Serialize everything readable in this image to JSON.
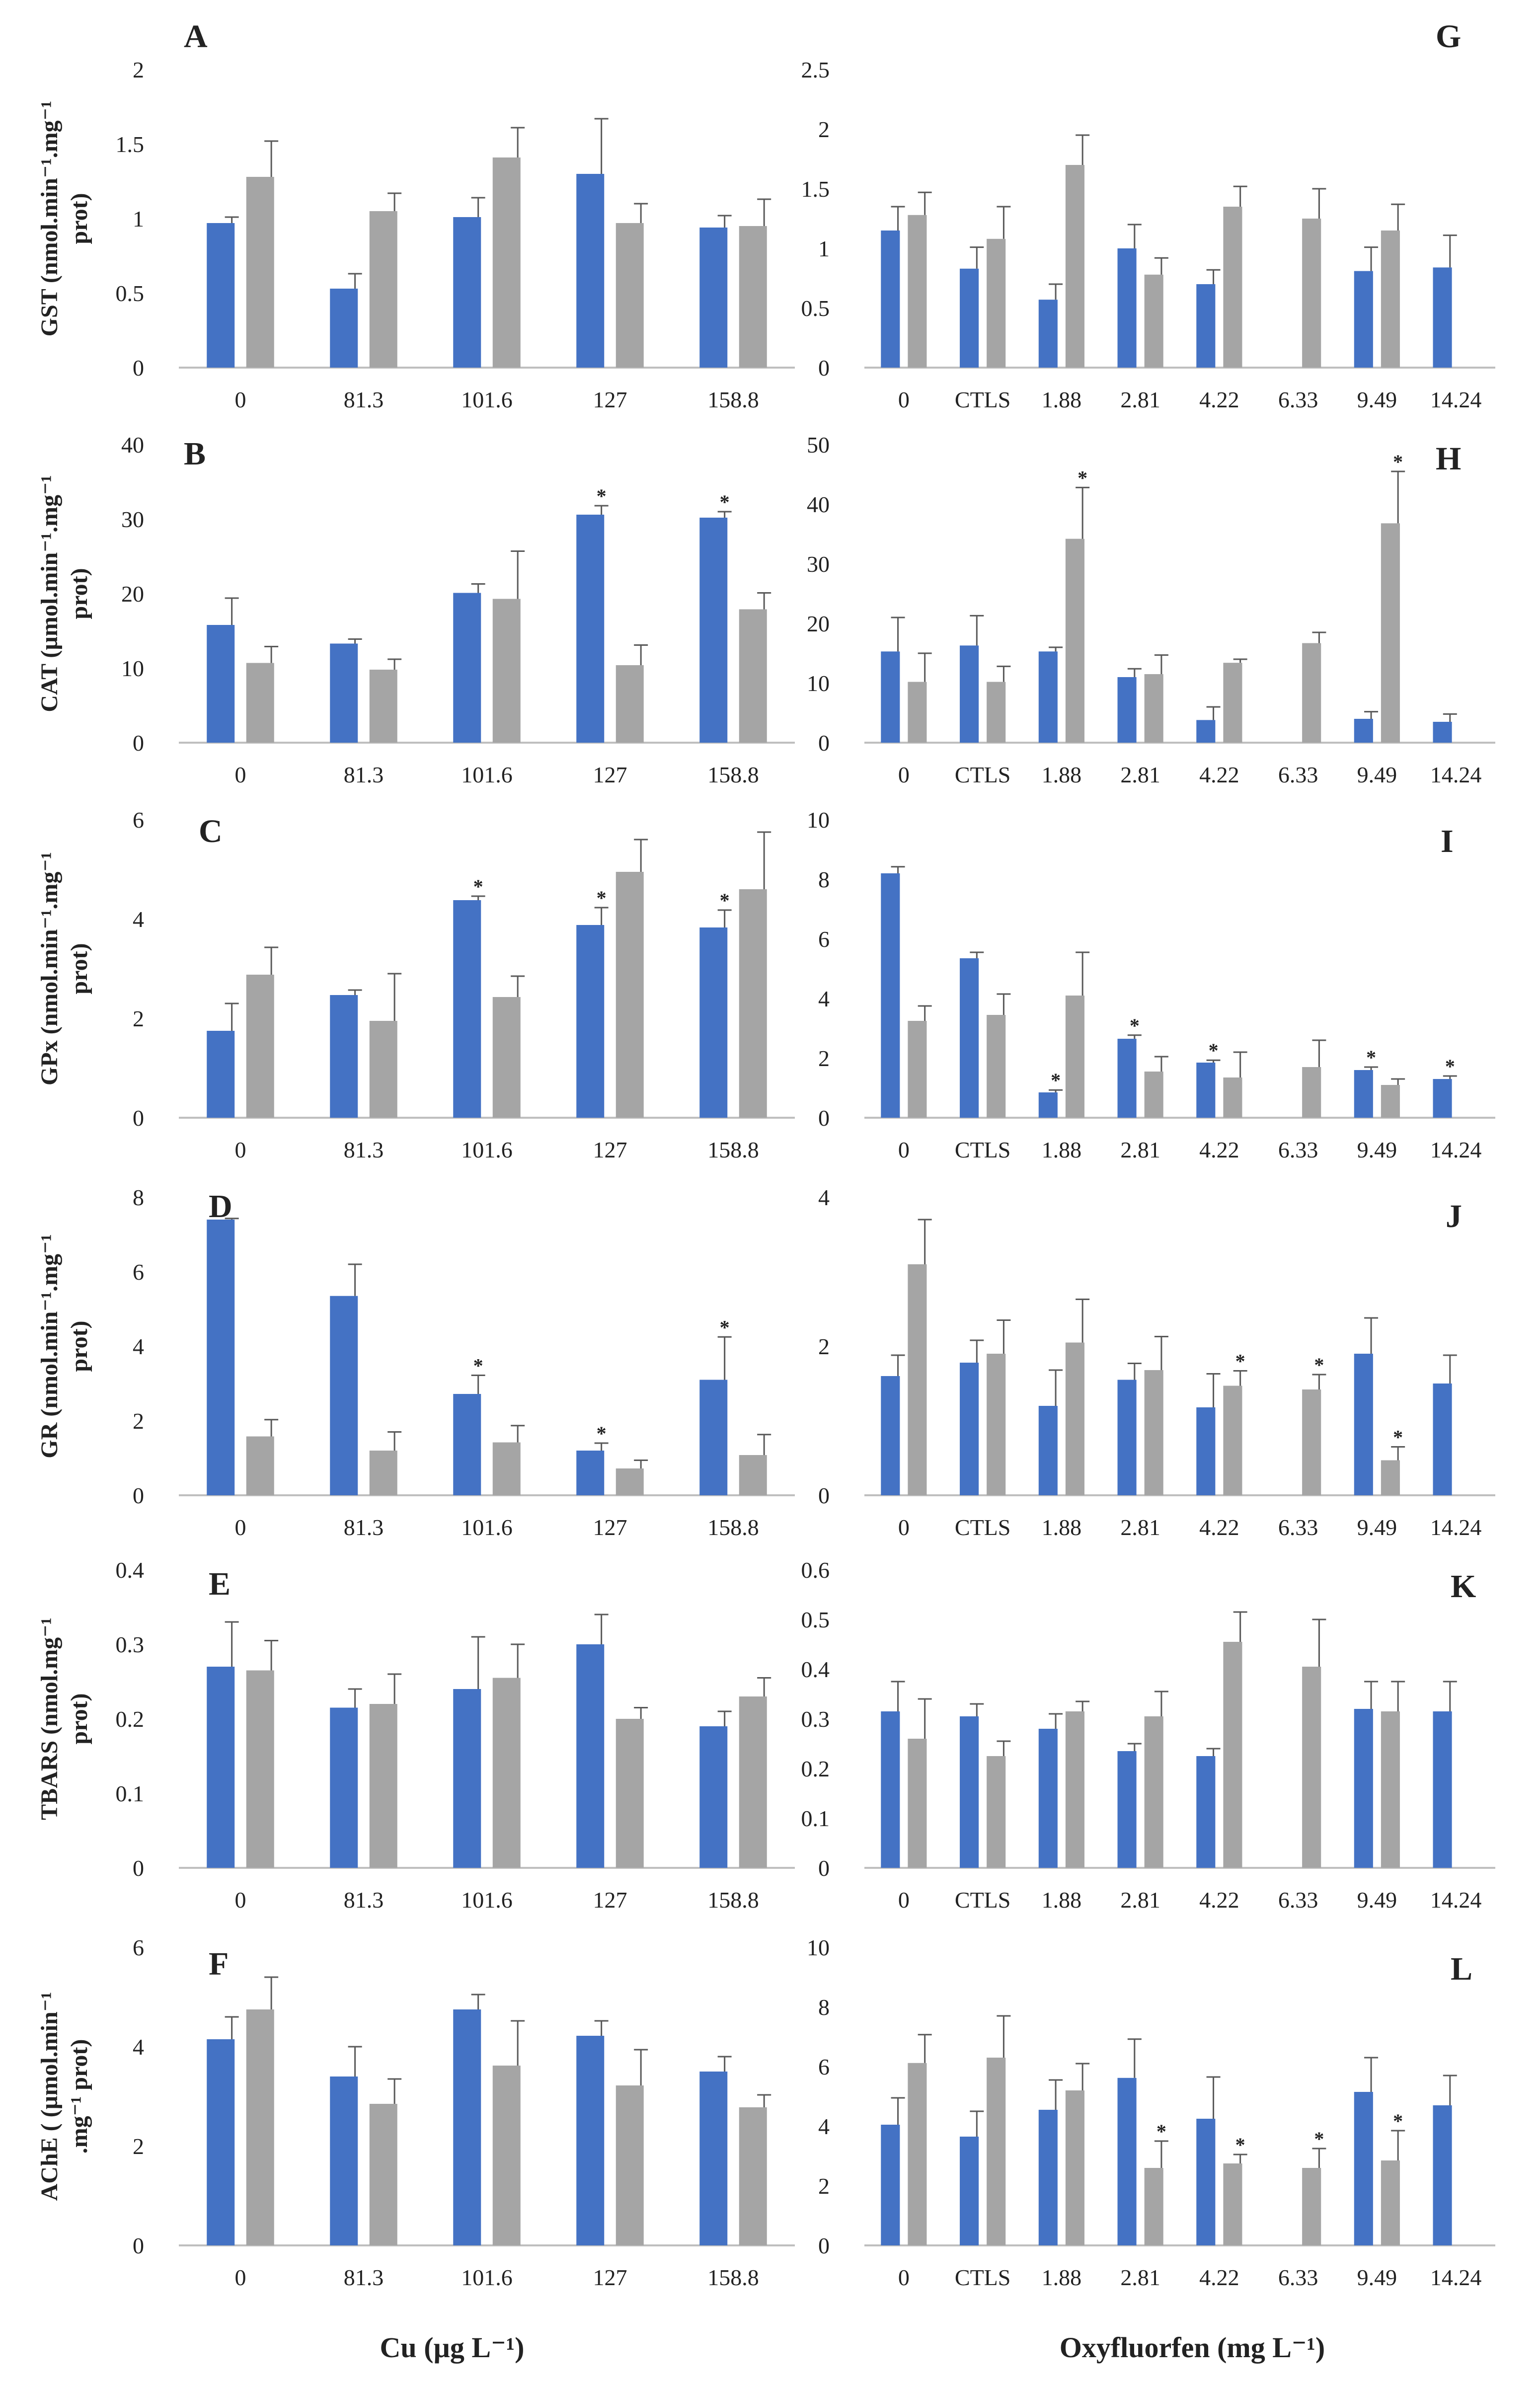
{
  "colors": {
    "blue": "#4472C4",
    "gray": "#A5A5A5",
    "error": "#595959",
    "axis": "#BFBFBF",
    "text": "#222222"
  },
  "x_titles": {
    "left": "Cu (µg L⁻¹)",
    "right": "Oxyfluorfen  (mg L⁻¹)"
  },
  "chart_data": [
    {
      "id": "A",
      "type": "bar",
      "letter": "A",
      "ylabel": [
        "GST (nmol.min⁻¹.mg⁻¹",
        "prot)"
      ],
      "ylim": [
        0,
        2
      ],
      "ticks": [
        "0",
        "0.5",
        "1",
        "1.5",
        "2"
      ],
      "categories": [
        "0",
        "81.3",
        "101.6",
        "127",
        "158.8"
      ],
      "series": [
        {
          "name": "blue",
          "values": [
            0.97,
            0.53,
            1.01,
            1.3,
            0.94
          ],
          "errors": [
            0.04,
            0.1,
            0.13,
            0.37,
            0.08
          ],
          "sig": [
            false,
            false,
            false,
            false,
            false
          ]
        },
        {
          "name": "gray",
          "values": [
            1.28,
            1.05,
            1.41,
            0.97,
            0.95
          ],
          "errors": [
            0.24,
            0.12,
            0.2,
            0.13,
            0.18
          ],
          "sig": [
            false,
            false,
            false,
            false,
            false
          ]
        }
      ]
    },
    {
      "id": "B",
      "type": "bar",
      "letter": "B",
      "ylabel": [
        "CAT (µmol.min⁻¹.mg⁻¹",
        "prot)"
      ],
      "ylim": [
        0,
        40
      ],
      "ticks": [
        "0",
        "10",
        "20",
        "30",
        "40"
      ],
      "categories": [
        "0",
        "81.3",
        "101.6",
        "127",
        "158.8"
      ],
      "series": [
        {
          "name": "blue",
          "values": [
            15.8,
            13.3,
            20.1,
            30.6,
            30.2
          ],
          "errors": [
            3.6,
            0.6,
            1.2,
            1.2,
            0.8
          ],
          "sig": [
            false,
            false,
            false,
            true,
            true
          ]
        },
        {
          "name": "gray",
          "values": [
            10.7,
            9.8,
            19.3,
            10.4,
            17.9
          ],
          "errors": [
            2.2,
            1.4,
            6.4,
            2.7,
            2.2
          ],
          "sig": [
            false,
            false,
            false,
            false,
            false
          ]
        }
      ]
    },
    {
      "id": "C",
      "type": "bar",
      "letter": "C",
      "ylabel": [
        "GPx (nmol.min⁻¹.mg⁻¹",
        "prot)"
      ],
      "ylim": [
        0,
        6
      ],
      "ticks": [
        "0",
        "2",
        "4",
        "6"
      ],
      "categories": [
        "0",
        "81.3",
        "101.6",
        "127",
        "158.8"
      ],
      "series": [
        {
          "name": "blue",
          "values": [
            1.75,
            2.47,
            4.38,
            3.88,
            3.83
          ],
          "errors": [
            0.55,
            0.1,
            0.08,
            0.35,
            0.35
          ],
          "sig": [
            false,
            false,
            true,
            true,
            true
          ]
        },
        {
          "name": "gray",
          "values": [
            2.88,
            1.95,
            2.43,
            4.95,
            4.6
          ],
          "errors": [
            0.55,
            0.95,
            0.42,
            0.65,
            1.15
          ],
          "sig": [
            false,
            false,
            false,
            false,
            false
          ]
        }
      ]
    },
    {
      "id": "D",
      "type": "bar",
      "letter": "D",
      "ylabel": [
        "GR (nmol.min⁻¹.mg⁻¹",
        "prot)"
      ],
      "ylim": [
        0,
        8
      ],
      "ticks": [
        "0",
        "2",
        "4",
        "6",
        "8"
      ],
      "categories": [
        "0",
        "81.3",
        "101.6",
        "127",
        "158.8"
      ],
      "series": [
        {
          "name": "blue",
          "values": [
            7.4,
            5.35,
            2.72,
            1.2,
            3.1
          ],
          "errors": [
            0.03,
            0.85,
            0.5,
            0.2,
            1.15
          ],
          "sig": [
            false,
            false,
            true,
            true,
            true
          ]
        },
        {
          "name": "gray",
          "values": [
            1.58,
            1.2,
            1.42,
            0.72,
            1.08
          ],
          "errors": [
            0.45,
            0.5,
            0.45,
            0.22,
            0.55
          ],
          "sig": [
            false,
            false,
            false,
            false,
            false
          ]
        }
      ]
    },
    {
      "id": "E",
      "type": "bar",
      "letter": "E",
      "ylabel": [
        "TBARS (nmol.mg⁻¹",
        "prot)"
      ],
      "ylim": [
        0,
        0.4
      ],
      "ticks": [
        "0",
        "0.1",
        "0.2",
        "0.3",
        "0.4"
      ],
      "categories": [
        "0",
        "81.3",
        "101.6",
        "127",
        "158.8"
      ],
      "series": [
        {
          "name": "blue",
          "values": [
            0.27,
            0.215,
            0.24,
            0.3,
            0.19
          ],
          "errors": [
            0.06,
            0.025,
            0.07,
            0.04,
            0.02
          ],
          "sig": [
            false,
            false,
            false,
            false,
            false
          ]
        },
        {
          "name": "gray",
          "values": [
            0.265,
            0.22,
            0.255,
            0.2,
            0.23
          ],
          "errors": [
            0.04,
            0.04,
            0.045,
            0.015,
            0.025
          ],
          "sig": [
            false,
            false,
            false,
            false,
            false
          ]
        }
      ]
    },
    {
      "id": "F",
      "type": "bar",
      "letter": "F",
      "ylabel": [
        "AChE ( (µmol.min⁻¹",
        ".mg⁻¹ prot)"
      ],
      "ylim": [
        0,
        6
      ],
      "ticks": [
        "0",
        "2",
        "4",
        "6"
      ],
      "categories": [
        "0",
        "81.3",
        "101.6",
        "127",
        "158.8"
      ],
      "series": [
        {
          "name": "blue",
          "values": [
            4.15,
            3.4,
            4.75,
            4.22,
            3.5
          ],
          "errors": [
            0.45,
            0.6,
            0.3,
            0.3,
            0.3
          ],
          "sig": [
            false,
            false,
            false,
            false,
            false
          ]
        },
        {
          "name": "gray",
          "values": [
            4.75,
            2.85,
            3.62,
            3.22,
            2.78
          ],
          "errors": [
            0.65,
            0.5,
            0.9,
            0.72,
            0.25
          ],
          "sig": [
            false,
            false,
            false,
            false,
            false
          ]
        }
      ]
    },
    {
      "id": "G",
      "type": "bar",
      "letter": "G",
      "ylabel": [],
      "ylim": [
        0,
        2.5
      ],
      "ticks": [
        "0",
        "0.5",
        "1",
        "1.5",
        "2",
        "2.5"
      ],
      "categories": [
        "0",
        "CTLS",
        "1.88",
        "2.81",
        "4.22",
        "6.33",
        "9.49",
        "14.24"
      ],
      "series": [
        {
          "name": "blue",
          "values": [
            1.15,
            0.83,
            0.57,
            1.0,
            0.7,
            null,
            0.81,
            0.84
          ],
          "errors": [
            0.2,
            0.18,
            0.13,
            0.2,
            0.12,
            null,
            0.2,
            0.27
          ],
          "sig": [
            false,
            false,
            false,
            false,
            false,
            false,
            false,
            false
          ]
        },
        {
          "name": "gray",
          "values": [
            1.28,
            1.08,
            1.7,
            0.78,
            1.35,
            1.25,
            1.15,
            null
          ],
          "errors": [
            0.19,
            0.27,
            0.25,
            0.14,
            0.17,
            0.25,
            0.22,
            null
          ],
          "sig": [
            false,
            false,
            false,
            false,
            false,
            false,
            false,
            false
          ]
        }
      ]
    },
    {
      "id": "H",
      "type": "bar",
      "letter": "H",
      "ylabel": [],
      "ylim": [
        0,
        50
      ],
      "ticks": [
        "0",
        "10",
        "20",
        "30",
        "40",
        "50"
      ],
      "categories": [
        "0",
        "CTLS",
        "1.88",
        "2.81",
        "4.22",
        "6.33",
        "9.49",
        "14.24"
      ],
      "series": [
        {
          "name": "blue",
          "values": [
            15.3,
            16.3,
            15.3,
            11.0,
            3.8,
            null,
            4.0,
            3.5
          ],
          "errors": [
            5.7,
            5.0,
            0.7,
            1.4,
            2.2,
            null,
            1.2,
            1.3
          ],
          "sig": [
            false,
            false,
            false,
            false,
            false,
            false,
            false,
            false
          ]
        },
        {
          "name": "gray",
          "values": [
            10.2,
            10.2,
            34.2,
            11.5,
            13.4,
            16.7,
            36.8,
            null
          ],
          "errors": [
            4.8,
            2.6,
            8.6,
            3.2,
            0.6,
            1.8,
            8.7,
            null
          ],
          "sig": [
            false,
            false,
            true,
            false,
            false,
            false,
            true,
            false
          ]
        }
      ]
    },
    {
      "id": "I",
      "type": "bar",
      "letter": "I",
      "ylabel": [],
      "ylim": [
        0,
        10
      ],
      "ticks": [
        "0",
        "2",
        "4",
        "6",
        "8",
        "10"
      ],
      "categories": [
        "0",
        "CTLS",
        "1.88",
        "2.81",
        "4.22",
        "6.33",
        "9.49",
        "14.24"
      ],
      "series": [
        {
          "name": "blue",
          "values": [
            8.2,
            5.35,
            0.85,
            2.65,
            1.85,
            null,
            1.6,
            1.3
          ],
          "errors": [
            0.22,
            0.2,
            0.08,
            0.12,
            0.08,
            null,
            0.1,
            0.1
          ],
          "sig": [
            false,
            false,
            true,
            true,
            true,
            false,
            true,
            true
          ]
        },
        {
          "name": "gray",
          "values": [
            3.25,
            3.45,
            4.1,
            1.55,
            1.35,
            1.7,
            1.1,
            null
          ],
          "errors": [
            0.5,
            0.7,
            1.45,
            0.5,
            0.85,
            0.9,
            0.2,
            null
          ],
          "sig": [
            false,
            false,
            false,
            false,
            false,
            false,
            false,
            false
          ]
        }
      ]
    },
    {
      "id": "J",
      "type": "bar",
      "letter": "J",
      "ylabel": [],
      "ylim": [
        0,
        4
      ],
      "ticks": [
        "0",
        "2",
        "4"
      ],
      "categories": [
        "0",
        "CTLS",
        "1.88",
        "2.81",
        "4.22",
        "6.33",
        "9.49",
        "14.24"
      ],
      "series": [
        {
          "name": "blue",
          "values": [
            1.6,
            1.78,
            1.2,
            1.55,
            1.18,
            null,
            1.9,
            1.5
          ],
          "errors": [
            0.28,
            0.3,
            0.48,
            0.22,
            0.45,
            null,
            0.48,
            0.38
          ],
          "sig": [
            false,
            false,
            false,
            false,
            false,
            false,
            false,
            false
          ]
        },
        {
          "name": "gray",
          "values": [
            3.1,
            1.9,
            2.05,
            1.68,
            1.47,
            1.42,
            0.47,
            null
          ],
          "errors": [
            0.6,
            0.45,
            0.58,
            0.45,
            0.2,
            0.2,
            0.18,
            null
          ],
          "sig": [
            false,
            false,
            false,
            false,
            true,
            true,
            true,
            false
          ]
        }
      ]
    },
    {
      "id": "K",
      "type": "bar",
      "letter": "K",
      "ylabel": [],
      "ylim": [
        0,
        0.6
      ],
      "ticks": [
        "0",
        "0.1",
        "0.2",
        "0.3",
        "0.4",
        "0.5",
        "0.6"
      ],
      "categories": [
        "0",
        "CTLS",
        "1.88",
        "2.81",
        "4.22",
        "6.33",
        "9.49",
        "14.24"
      ],
      "series": [
        {
          "name": "blue",
          "values": [
            0.315,
            0.305,
            0.28,
            0.235,
            0.225,
            null,
            0.32,
            0.315
          ],
          "errors": [
            0.06,
            0.025,
            0.03,
            0.015,
            0.015,
            null,
            0.055,
            0.06
          ],
          "sig": [
            false,
            false,
            false,
            false,
            false,
            false,
            false,
            false
          ]
        },
        {
          "name": "gray",
          "values": [
            0.26,
            0.225,
            0.315,
            0.305,
            0.455,
            0.405,
            0.315,
            null
          ],
          "errors": [
            0.08,
            0.03,
            0.02,
            0.05,
            0.06,
            0.095,
            0.06,
            null
          ],
          "sig": [
            false,
            false,
            false,
            false,
            false,
            false,
            false,
            false
          ]
        }
      ]
    },
    {
      "id": "L",
      "type": "bar",
      "letter": "L",
      "ylabel": [],
      "ylim": [
        0,
        10
      ],
      "ticks": [
        "0",
        "2",
        "4",
        "6",
        "8",
        "10"
      ],
      "categories": [
        "0",
        "CTLS",
        "1.88",
        "2.81",
        "4.22",
        "6.33",
        "9.49",
        "14.24"
      ],
      "series": [
        {
          "name": "blue",
          "values": [
            4.05,
            3.65,
            4.55,
            5.62,
            4.25,
            null,
            5.15,
            4.7
          ],
          "errors": [
            0.9,
            0.85,
            1.0,
            1.3,
            1.4,
            null,
            1.15,
            1.0
          ],
          "sig": [
            false,
            false,
            false,
            false,
            false,
            false,
            false,
            false
          ]
        },
        {
          "name": "gray",
          "values": [
            6.12,
            6.3,
            5.2,
            2.6,
            2.75,
            2.6,
            2.85,
            null
          ],
          "errors": [
            0.95,
            1.4,
            0.9,
            0.9,
            0.3,
            0.65,
            1.0,
            null
          ],
          "sig": [
            false,
            false,
            false,
            true,
            true,
            true,
            true,
            false
          ]
        }
      ]
    }
  ]
}
